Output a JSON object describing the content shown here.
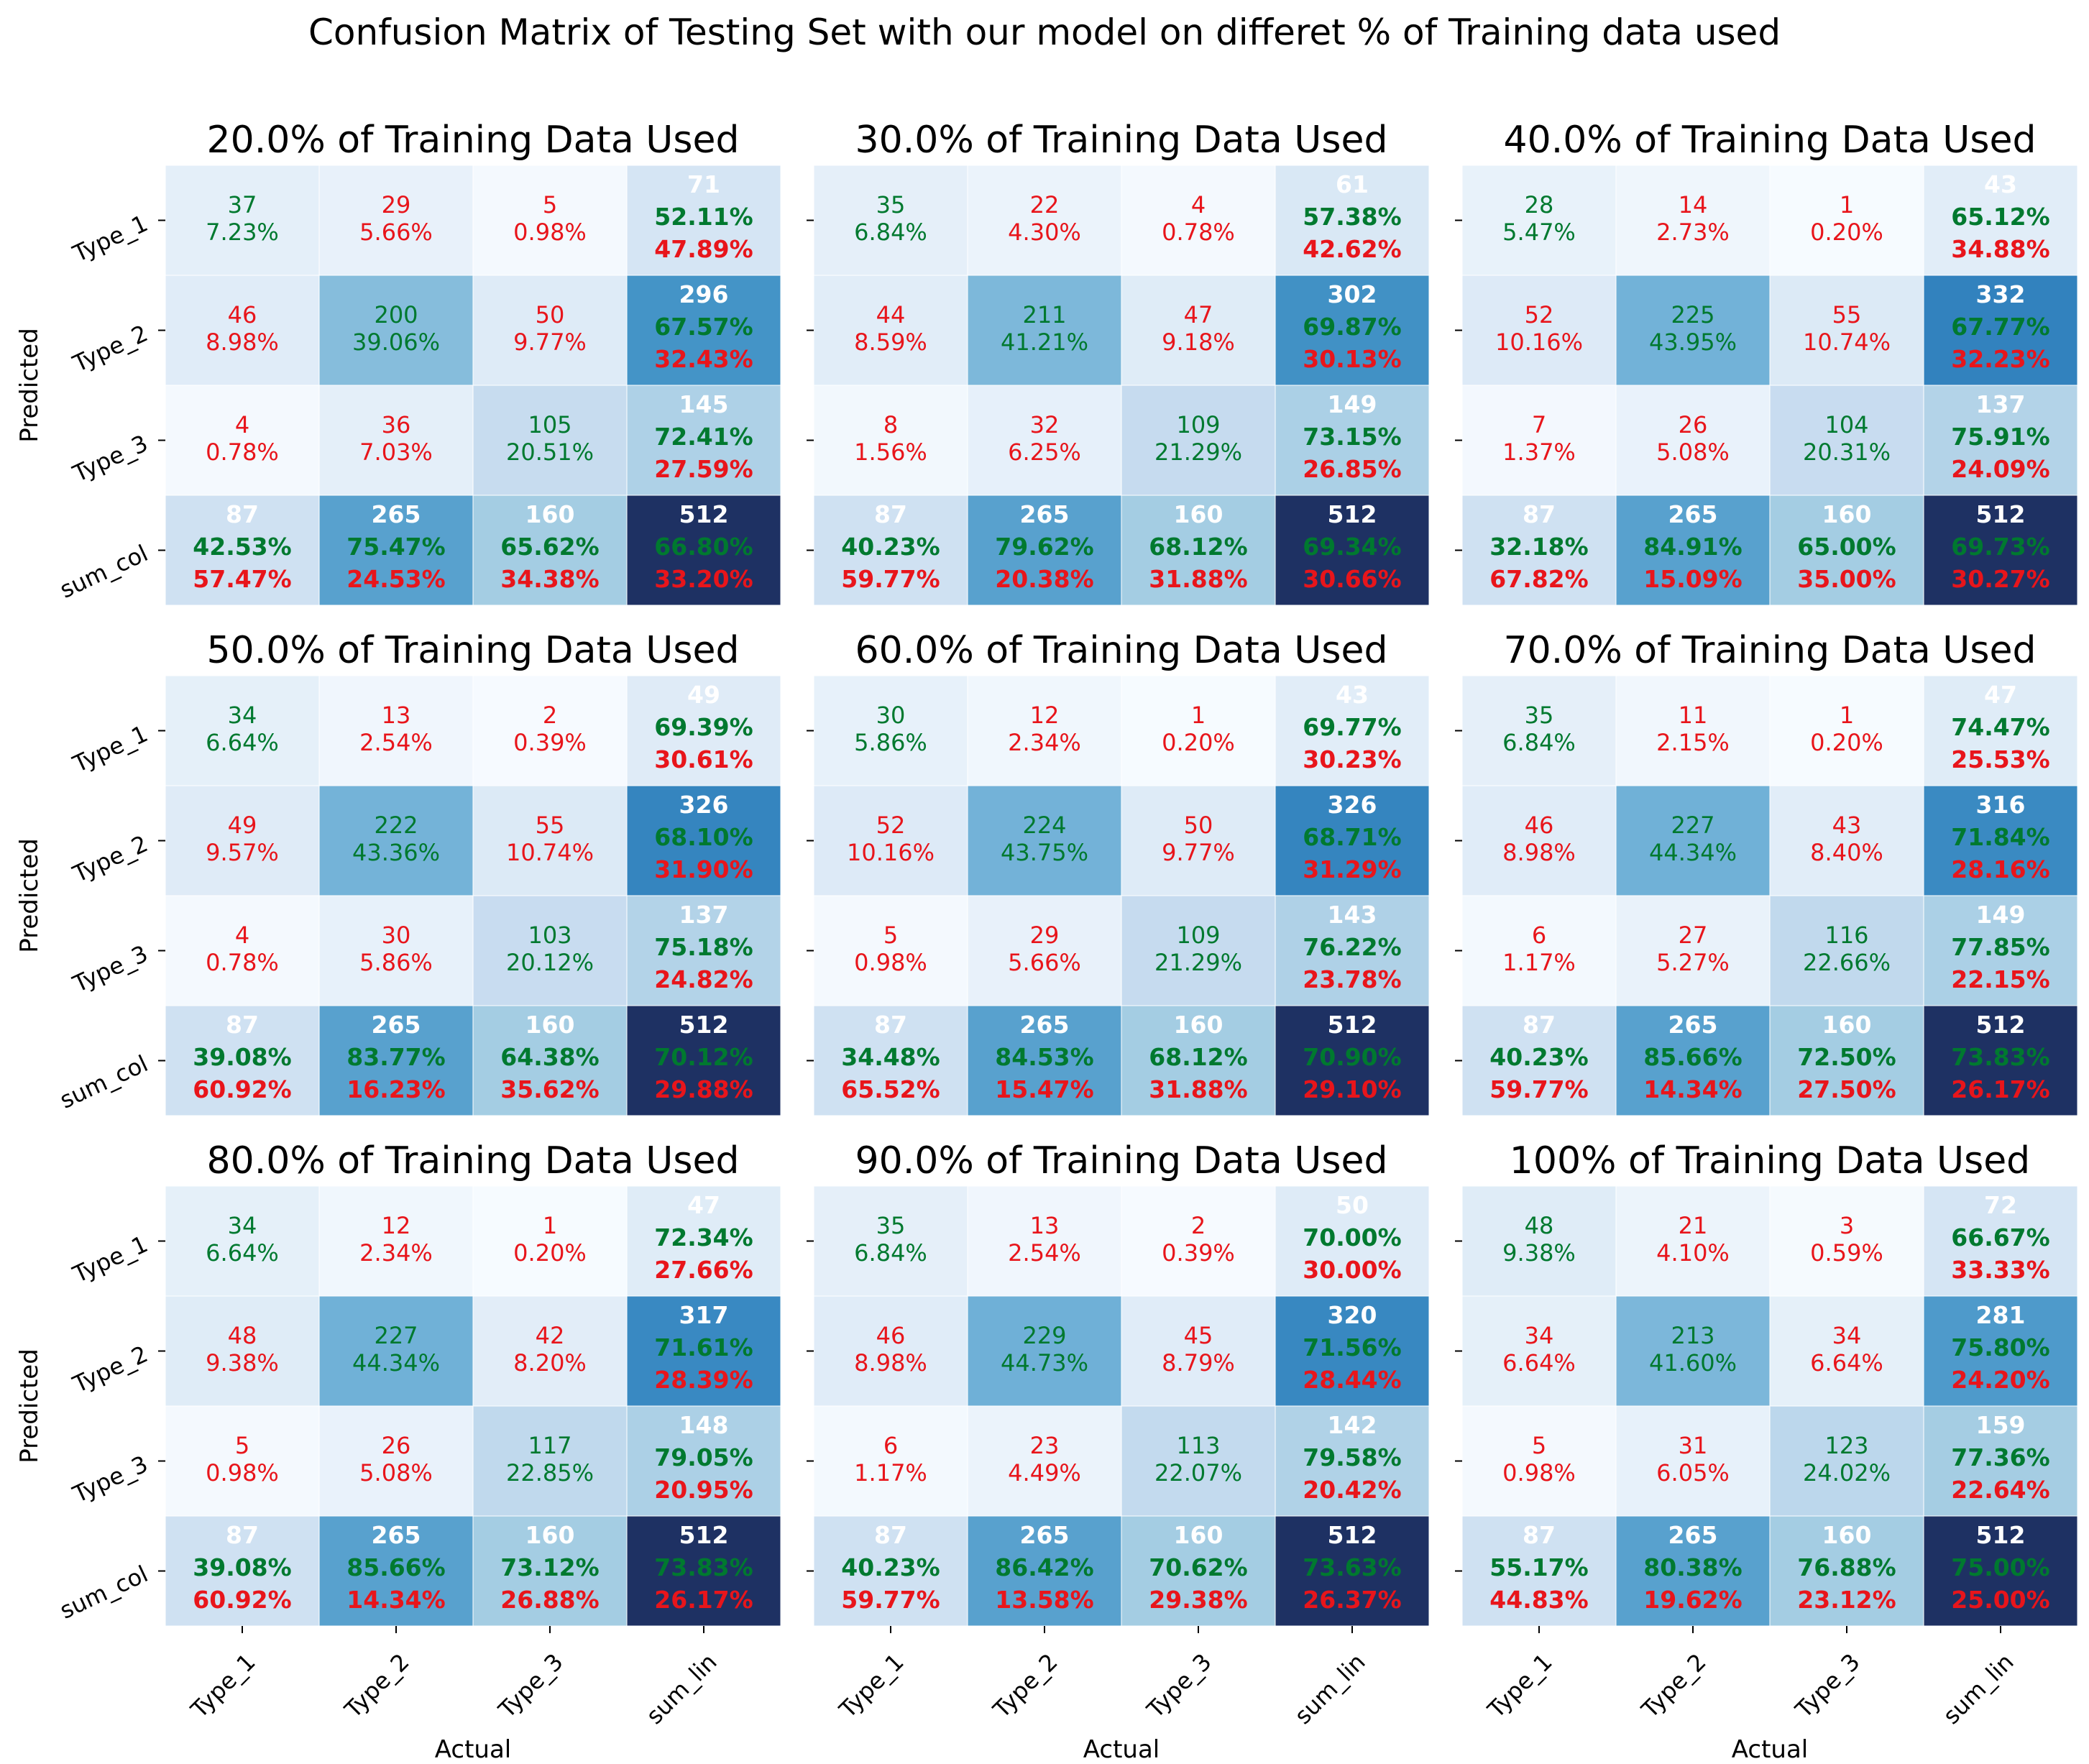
{
  "figure": {
    "title": "Confusion Matrix of Testing Set with our model on differet % of Training data used"
  },
  "colors": {
    "correct_text": "#00792f",
    "wrong_text": "#e8151b",
    "on_dark_text": "#ffffff",
    "text": "#000000",
    "background": "#ffffff",
    "colormap": "Blues"
  },
  "chart_data": {
    "type": "heatmap",
    "row_labels": [
      "Type_1",
      "Type_2",
      "Type_3",
      "sum_col"
    ],
    "col_labels": [
      "Type_1",
      "Type_2",
      "Type_3",
      "sum_lin"
    ],
    "ylabel": "Predicted",
    "xlabel": "Actual",
    "total": 512,
    "col_totals": [
      87,
      265,
      160
    ],
    "panels": [
      {
        "title": "20.0% of Training Data Used",
        "matrix": [
          [
            37,
            29,
            5
          ],
          [
            46,
            200,
            50
          ],
          [
            4,
            36,
            105
          ]
        ],
        "cell_pct": [
          [
            "7.23%",
            "5.66%",
            "0.98%"
          ],
          [
            "8.98%",
            "39.06%",
            "9.77%"
          ],
          [
            "0.78%",
            "7.03%",
            "20.51%"
          ]
        ],
        "row_sums": [
          71,
          296,
          145
        ],
        "row_acc": [
          [
            "52.11%",
            "47.89%"
          ],
          [
            "67.57%",
            "32.43%"
          ],
          [
            "72.41%",
            "27.59%"
          ]
        ],
        "col_acc": [
          [
            "42.53%",
            "57.47%"
          ],
          [
            "75.47%",
            "24.53%"
          ],
          [
            "65.62%",
            "34.38%"
          ]
        ],
        "overall": [
          "66.80%",
          "33.20%"
        ]
      },
      {
        "title": "30.0% of Training Data Used",
        "matrix": [
          [
            35,
            22,
            4
          ],
          [
            44,
            211,
            47
          ],
          [
            8,
            32,
            109
          ]
        ],
        "cell_pct": [
          [
            "6.84%",
            "4.30%",
            "0.78%"
          ],
          [
            "8.59%",
            "41.21%",
            "9.18%"
          ],
          [
            "1.56%",
            "6.25%",
            "21.29%"
          ]
        ],
        "row_sums": [
          61,
          302,
          149
        ],
        "row_acc": [
          [
            "57.38%",
            "42.62%"
          ],
          [
            "69.87%",
            "30.13%"
          ],
          [
            "73.15%",
            "26.85%"
          ]
        ],
        "col_acc": [
          [
            "40.23%",
            "59.77%"
          ],
          [
            "79.62%",
            "20.38%"
          ],
          [
            "68.12%",
            "31.88%"
          ]
        ],
        "overall": [
          "69.34%",
          "30.66%"
        ]
      },
      {
        "title": "40.0% of Training Data Used",
        "matrix": [
          [
            28,
            14,
            1
          ],
          [
            52,
            225,
            55
          ],
          [
            7,
            26,
            104
          ]
        ],
        "cell_pct": [
          [
            "5.47%",
            "2.73%",
            "0.20%"
          ],
          [
            "10.16%",
            "43.95%",
            "10.74%"
          ],
          [
            "1.37%",
            "5.08%",
            "20.31%"
          ]
        ],
        "row_sums": [
          43,
          332,
          137
        ],
        "row_acc": [
          [
            "65.12%",
            "34.88%"
          ],
          [
            "67.77%",
            "32.23%"
          ],
          [
            "75.91%",
            "24.09%"
          ]
        ],
        "col_acc": [
          [
            "32.18%",
            "67.82%"
          ],
          [
            "84.91%",
            "15.09%"
          ],
          [
            "65.00%",
            "35.00%"
          ]
        ],
        "overall": [
          "69.73%",
          "30.27%"
        ]
      },
      {
        "title": "50.0% of Training Data Used",
        "matrix": [
          [
            34,
            13,
            2
          ],
          [
            49,
            222,
            55
          ],
          [
            4,
            30,
            103
          ]
        ],
        "cell_pct": [
          [
            "6.64%",
            "2.54%",
            "0.39%"
          ],
          [
            "9.57%",
            "43.36%",
            "10.74%"
          ],
          [
            "0.78%",
            "5.86%",
            "20.12%"
          ]
        ],
        "row_sums": [
          49,
          326,
          137
        ],
        "row_acc": [
          [
            "69.39%",
            "30.61%"
          ],
          [
            "68.10%",
            "31.90%"
          ],
          [
            "75.18%",
            "24.82%"
          ]
        ],
        "col_acc": [
          [
            "39.08%",
            "60.92%"
          ],
          [
            "83.77%",
            "16.23%"
          ],
          [
            "64.38%",
            "35.62%"
          ]
        ],
        "overall": [
          "70.12%",
          "29.88%"
        ]
      },
      {
        "title": "60.0% of Training Data Used",
        "matrix": [
          [
            30,
            12,
            1
          ],
          [
            52,
            224,
            50
          ],
          [
            5,
            29,
            109
          ]
        ],
        "cell_pct": [
          [
            "5.86%",
            "2.34%",
            "0.20%"
          ],
          [
            "10.16%",
            "43.75%",
            "9.77%"
          ],
          [
            "0.98%",
            "5.66%",
            "21.29%"
          ]
        ],
        "row_sums": [
          43,
          326,
          143
        ],
        "row_acc": [
          [
            "69.77%",
            "30.23%"
          ],
          [
            "68.71%",
            "31.29%"
          ],
          [
            "76.22%",
            "23.78%"
          ]
        ],
        "col_acc": [
          [
            "34.48%",
            "65.52%"
          ],
          [
            "84.53%",
            "15.47%"
          ],
          [
            "68.12%",
            "31.88%"
          ]
        ],
        "overall": [
          "70.90%",
          "29.10%"
        ]
      },
      {
        "title": "70.0% of Training Data Used",
        "matrix": [
          [
            35,
            11,
            1
          ],
          [
            46,
            227,
            43
          ],
          [
            6,
            27,
            116
          ]
        ],
        "cell_pct": [
          [
            "6.84%",
            "2.15%",
            "0.20%"
          ],
          [
            "8.98%",
            "44.34%",
            "8.40%"
          ],
          [
            "1.17%",
            "5.27%",
            "22.66%"
          ]
        ],
        "row_sums": [
          47,
          316,
          149
        ],
        "row_acc": [
          [
            "74.47%",
            "25.53%"
          ],
          [
            "71.84%",
            "28.16%"
          ],
          [
            "77.85%",
            "22.15%"
          ]
        ],
        "col_acc": [
          [
            "40.23%",
            "59.77%"
          ],
          [
            "85.66%",
            "14.34%"
          ],
          [
            "72.50%",
            "27.50%"
          ]
        ],
        "overall": [
          "73.83%",
          "26.17%"
        ]
      },
      {
        "title": "80.0% of Training Data Used",
        "matrix": [
          [
            34,
            12,
            1
          ],
          [
            48,
            227,
            42
          ],
          [
            5,
            26,
            117
          ]
        ],
        "cell_pct": [
          [
            "6.64%",
            "2.34%",
            "0.20%"
          ],
          [
            "9.38%",
            "44.34%",
            "8.20%"
          ],
          [
            "0.98%",
            "5.08%",
            "22.85%"
          ]
        ],
        "row_sums": [
          47,
          317,
          148
        ],
        "row_acc": [
          [
            "72.34%",
            "27.66%"
          ],
          [
            "71.61%",
            "28.39%"
          ],
          [
            "79.05%",
            "20.95%"
          ]
        ],
        "col_acc": [
          [
            "39.08%",
            "60.92%"
          ],
          [
            "85.66%",
            "14.34%"
          ],
          [
            "73.12%",
            "26.88%"
          ]
        ],
        "overall": [
          "73.83%",
          "26.17%"
        ]
      },
      {
        "title": "90.0% of Training Data Used",
        "matrix": [
          [
            35,
            13,
            2
          ],
          [
            46,
            229,
            45
          ],
          [
            6,
            23,
            113
          ]
        ],
        "cell_pct": [
          [
            "6.84%",
            "2.54%",
            "0.39%"
          ],
          [
            "8.98%",
            "44.73%",
            "8.79%"
          ],
          [
            "1.17%",
            "4.49%",
            "22.07%"
          ]
        ],
        "row_sums": [
          50,
          320,
          142
        ],
        "row_acc": [
          [
            "70.00%",
            "30.00%"
          ],
          [
            "71.56%",
            "28.44%"
          ],
          [
            "79.58%",
            "20.42%"
          ]
        ],
        "col_acc": [
          [
            "40.23%",
            "59.77%"
          ],
          [
            "86.42%",
            "13.58%"
          ],
          [
            "70.62%",
            "29.38%"
          ]
        ],
        "overall": [
          "73.63%",
          "26.37%"
        ]
      },
      {
        "title": "100% of Training Data Used",
        "matrix": [
          [
            48,
            21,
            3
          ],
          [
            34,
            213,
            34
          ],
          [
            5,
            31,
            123
          ]
        ],
        "cell_pct": [
          [
            "9.38%",
            "4.10%",
            "0.59%"
          ],
          [
            "6.64%",
            "41.60%",
            "6.64%"
          ],
          [
            "0.98%",
            "6.05%",
            "24.02%"
          ]
        ],
        "row_sums": [
          72,
          281,
          159
        ],
        "row_acc": [
          [
            "66.67%",
            "33.33%"
          ],
          [
            "75.80%",
            "24.20%"
          ],
          [
            "77.36%",
            "22.64%"
          ]
        ],
        "col_acc": [
          [
            "55.17%",
            "44.83%"
          ],
          [
            "80.38%",
            "19.62%"
          ],
          [
            "76.88%",
            "23.12%"
          ]
        ],
        "overall": [
          "75.00%",
          "25.00%"
        ]
      }
    ]
  }
}
